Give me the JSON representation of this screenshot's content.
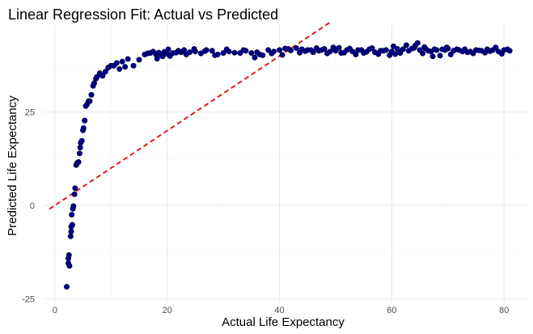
{
  "chart_data": {
    "type": "scatter",
    "title": "Linear Regression Fit: Actual vs Predicted",
    "xlabel": "Actual Life Expectancy",
    "ylabel": "Predicted Life Expectancy",
    "xlim": [
      -2,
      84
    ],
    "ylim": [
      -26,
      48.5
    ],
    "x_ticks": [
      0,
      20,
      40,
      60,
      80
    ],
    "y_ticks": [
      -25,
      0,
      25
    ],
    "grid": true,
    "colors": {
      "points": "#00008B",
      "line": "#E41A1C",
      "grid_major": "#EBEBEB",
      "grid_minor": "#F5F5F5"
    },
    "reference_line": {
      "type": "identity",
      "style": "dashed",
      "from": [
        -1,
        -1
      ],
      "to": [
        49,
        49
      ]
    },
    "points": [
      [
        2.1,
        -21.8
      ],
      [
        2.4,
        -15.5
      ],
      [
        2.4,
        -14.2
      ],
      [
        2.5,
        -13.3
      ],
      [
        2.6,
        -16.2
      ],
      [
        2.8,
        -8.3
      ],
      [
        2.9,
        -7.0
      ],
      [
        2.9,
        -5.7
      ],
      [
        3.1,
        -5.2
      ],
      [
        3.0,
        -2.5
      ],
      [
        3.2,
        -0.9
      ],
      [
        3.3,
        -0.2
      ],
      [
        3.5,
        3.0
      ],
      [
        3.6,
        4.6
      ],
      [
        3.8,
        10.8
      ],
      [
        3.9,
        11.1
      ],
      [
        4.0,
        11.4
      ],
      [
        4.2,
        11.6
      ],
      [
        4.4,
        13.9
      ],
      [
        4.5,
        15.5
      ],
      [
        4.6,
        16.8
      ],
      [
        4.8,
        17.3
      ],
      [
        5.0,
        20.1
      ],
      [
        5.1,
        20.7
      ],
      [
        5.3,
        22.7
      ],
      [
        5.5,
        26.6
      ],
      [
        5.7,
        27.0
      ],
      [
        6.0,
        27.9
      ],
      [
        6.2,
        27.9
      ],
      [
        6.5,
        29.6
      ],
      [
        6.8,
        32.0
      ],
      [
        7.0,
        32.7
      ],
      [
        7.3,
        33.9
      ],
      [
        7.5,
        34.4
      ],
      [
        8.0,
        35.4
      ],
      [
        8.5,
        34.7
      ],
      [
        9.0,
        35.8
      ],
      [
        9.5,
        36.9
      ],
      [
        10.0,
        37.4
      ],
      [
        10.5,
        37.4
      ],
      [
        11.0,
        38.1
      ],
      [
        11.5,
        36.5
      ],
      [
        12.0,
        38.5
      ],
      [
        12.5,
        37.1
      ],
      [
        13.0,
        39.2
      ],
      [
        14.0,
        37.4
      ],
      [
        15.0,
        39.0
      ],
      [
        16.0,
        40.4
      ],
      [
        16.5,
        40.7
      ],
      [
        17.0,
        40.8
      ],
      [
        17.5,
        41.2
      ],
      [
        18.0,
        40.4
      ],
      [
        18.5,
        40.9
      ],
      [
        19.0,
        40.1
      ],
      [
        19.5,
        41.1
      ],
      [
        20.0,
        40.6
      ],
      [
        20.5,
        40.0
      ],
      [
        21.0,
        40.8
      ],
      [
        22.0,
        41.4
      ],
      [
        22.5,
        41.0
      ],
      [
        23.0,
        41.6
      ],
      [
        24.0,
        41.0
      ],
      [
        25.0,
        41.2
      ],
      [
        26.0,
        40.7
      ],
      [
        27.0,
        41.6
      ],
      [
        28.0,
        41.4
      ],
      [
        29.0,
        40.4
      ],
      [
        30.0,
        40.8
      ],
      [
        31.0,
        41.2
      ],
      [
        32.0,
        40.9
      ],
      [
        33.0,
        40.8
      ],
      [
        34.0,
        41.4
      ],
      [
        35.0,
        40.8
      ],
      [
        36.0,
        41.0
      ],
      [
        37.0,
        40.2
      ],
      [
        38.0,
        41.6
      ],
      [
        39.0,
        41.2
      ],
      [
        40.0,
        41.6
      ],
      [
        41.0,
        42.0
      ],
      [
        42.0,
        41.5
      ],
      [
        43.0,
        42.1
      ],
      [
        44.0,
        41.8
      ],
      [
        45.0,
        41.6
      ],
      [
        46.0,
        41.0
      ],
      [
        47.0,
        41.4
      ],
      [
        48.0,
        41.9
      ],
      [
        49.0,
        41.2
      ],
      [
        50.0,
        41.4
      ],
      [
        51.0,
        40.8
      ],
      [
        52.0,
        41.6
      ],
      [
        53.0,
        41.2
      ],
      [
        54.0,
        41.6
      ],
      [
        55.0,
        40.8
      ],
      [
        56.0,
        41.8
      ],
      [
        57.0,
        41.0
      ],
      [
        58.0,
        41.4
      ],
      [
        59.0,
        41.6
      ],
      [
        60.0,
        41.2
      ],
      [
        61.0,
        41.9
      ],
      [
        62.0,
        41.8
      ],
      [
        63.0,
        41.4
      ],
      [
        64.0,
        42.2
      ],
      [
        65.0,
        41.6
      ],
      [
        66.0,
        42.0
      ],
      [
        67.0,
        41.2
      ],
      [
        68.0,
        41.6
      ],
      [
        69.0,
        41.8
      ],
      [
        70.0,
        42.0
      ],
      [
        71.0,
        41.4
      ],
      [
        72.0,
        41.6
      ],
      [
        73.0,
        41.8
      ],
      [
        74.0,
        41.2
      ],
      [
        75.0,
        41.6
      ],
      [
        76.0,
        41.4
      ],
      [
        77.0,
        41.8
      ],
      [
        78.0,
        41.6
      ],
      [
        79.0,
        41.2
      ],
      [
        80.0,
        41.6
      ],
      [
        81.0,
        41.4
      ],
      [
        18.2,
        39.3
      ],
      [
        19.2,
        39.9
      ],
      [
        20.2,
        41.8
      ],
      [
        21.6,
        40.9
      ],
      [
        23.4,
        40.4
      ],
      [
        24.8,
        41.9
      ],
      [
        26.7,
        41.3
      ],
      [
        28.5,
        40.2
      ],
      [
        30.6,
        41.8
      ],
      [
        33.6,
        41.6
      ],
      [
        35.6,
        39.6
      ],
      [
        36.5,
        40.4
      ],
      [
        38.6,
        40.7
      ],
      [
        40.5,
        40.3
      ],
      [
        41.6,
        41.9
      ],
      [
        43.6,
        40.9
      ],
      [
        44.6,
        41.3
      ],
      [
        45.6,
        41.6
      ],
      [
        46.6,
        42.1
      ],
      [
        47.5,
        41.6
      ],
      [
        48.5,
        40.7
      ],
      [
        49.6,
        42.3
      ],
      [
        50.6,
        42.2
      ],
      [
        51.5,
        40.9
      ],
      [
        52.5,
        42.0
      ],
      [
        53.6,
        40.4
      ],
      [
        54.6,
        41.6
      ],
      [
        55.5,
        41.1
      ],
      [
        56.5,
        42.1
      ],
      [
        57.6,
        40.5
      ],
      [
        58.5,
        41.4
      ],
      [
        59.6,
        40.2
      ],
      [
        60.6,
        40.5
      ],
      [
        61.5,
        40.8
      ],
      [
        62.6,
        42.9
      ],
      [
        63.6,
        42.0
      ],
      [
        64.6,
        43.5
      ],
      [
        65.5,
        40.7
      ],
      [
        66.5,
        41.4
      ],
      [
        67.6,
        41.8
      ],
      [
        68.6,
        40.1
      ],
      [
        69.5,
        41.6
      ],
      [
        70.5,
        40.4
      ],
      [
        71.6,
        41.8
      ],
      [
        72.6,
        41.2
      ],
      [
        73.5,
        41.0
      ],
      [
        74.5,
        40.7
      ],
      [
        75.6,
        41.5
      ],
      [
        76.6,
        40.9
      ],
      [
        77.5,
        41.3
      ],
      [
        78.5,
        42.3
      ],
      [
        79.6,
        40.6
      ],
      [
        80.6,
        41.8
      ],
      [
        64.2,
        42.8
      ],
      [
        69.8,
        42.3
      ],
      [
        65.8,
        42.4
      ],
      [
        60.3,
        42.6
      ],
      [
        67.3,
        39.9
      ]
    ]
  }
}
